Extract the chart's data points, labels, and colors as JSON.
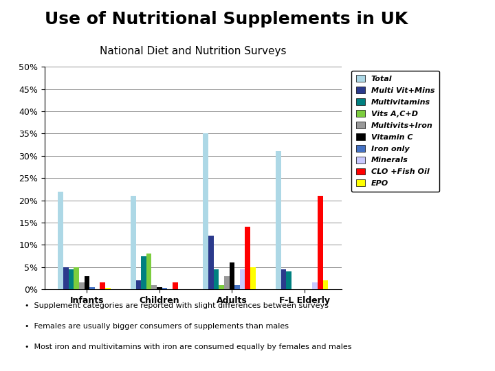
{
  "title": "Use of Nutritional Supplements in UK",
  "subtitle": "National Diet and Nutrition Surveys",
  "categories": [
    "Infants",
    "Children",
    "Adults",
    "F-L Elderly"
  ],
  "series": [
    {
      "label": "Total",
      "color": "#ADD8E6",
      "values": [
        22,
        21,
        35,
        31
      ]
    },
    {
      "label": "Multi Vit+Mins",
      "color": "#2B3A8C",
      "values": [
        5,
        2,
        12,
        4.5
      ]
    },
    {
      "label": "Multivitamins",
      "color": "#008080",
      "values": [
        4.5,
        7.5,
        4.5,
        4
      ]
    },
    {
      "label": "Vits A,C+D",
      "color": "#7CCD3E",
      "values": [
        5,
        8,
        1,
        0
      ]
    },
    {
      "label": "Multivits+Iron",
      "color": "#999999",
      "values": [
        1.5,
        1,
        3,
        0
      ]
    },
    {
      "label": "Vitamin C",
      "color": "#000000",
      "values": [
        3,
        0.5,
        6,
        0
      ]
    },
    {
      "label": "Iron only",
      "color": "#4472C4",
      "values": [
        0.5,
        0.3,
        1,
        0
      ]
    },
    {
      "label": "Minerals",
      "color": "#C9C9FF",
      "values": [
        0,
        0,
        4.5,
        1.5
      ]
    },
    {
      "label": "CLO +Fish Oil",
      "color": "#FF0000",
      "values": [
        1.5,
        1.5,
        14,
        21
      ]
    },
    {
      "label": "EPO",
      "color": "#FFFF00",
      "values": [
        0.3,
        0,
        5,
        2
      ]
    }
  ],
  "ylim": [
    0,
    50
  ],
  "yticks": [
    0,
    5,
    10,
    15,
    20,
    25,
    30,
    35,
    40,
    45,
    50
  ],
  "ytick_labels": [
    "0%",
    "5%",
    "10%",
    "15%",
    "20%",
    "25%",
    "30%",
    "35%",
    "40%",
    "45%",
    "50%"
  ],
  "footnotes": [
    "Supplement categories are reported with slight differences between surveys",
    "Females are usually bigger consumers of supplements than males",
    "Most iron and multivitamins with iron are consumed equally by females and males"
  ],
  "background_color": "#FFFFFF",
  "title_fontsize": 18,
  "subtitle_fontsize": 11
}
